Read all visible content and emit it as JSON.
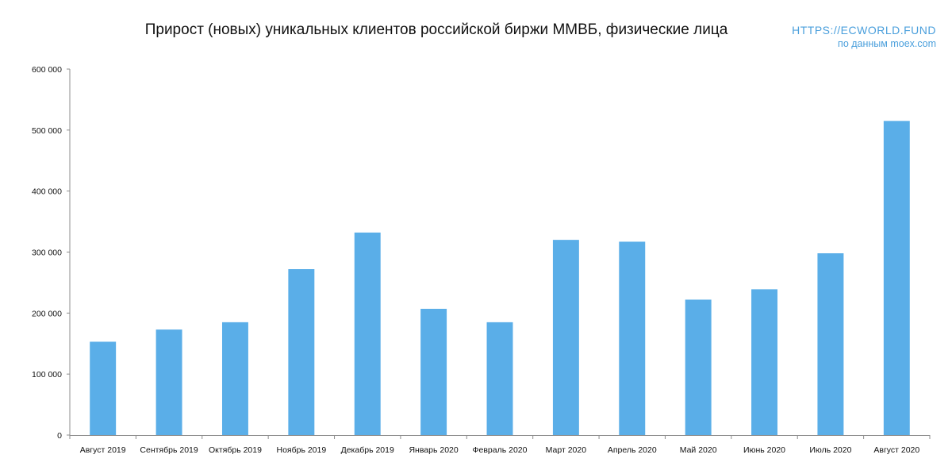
{
  "header": {
    "title": "Прирост (новых) уникальных клиентов российской биржи ММВБ, физические лица",
    "brand_url": "HTTPS://ECWORLD.FUND",
    "source": "по данным moex.com"
  },
  "colors": {
    "bar": "#5aaee8",
    "brand": "#4a9fdc",
    "axis": "#8c8c8c"
  },
  "chart_data": {
    "type": "bar",
    "title": "Прирост (новых) уникальных клиентов российской биржи ММВБ, физические лица",
    "categories": [
      "Август 2019",
      "Сентябрь 2019",
      "Октябрь 2019",
      "Ноябрь 2019",
      "Декабрь 2019",
      "Январь 2020",
      "Февраль 2020",
      "Март 2020",
      "Апрель 2020",
      "Май 2020",
      "Июнь 2020",
      "Июль 2020",
      "Август 2020"
    ],
    "values": [
      153000,
      173000,
      185000,
      272000,
      332000,
      207000,
      185000,
      320000,
      317000,
      222000,
      239000,
      298000,
      515000
    ],
    "ylim": [
      0,
      600000
    ],
    "yticks": [
      0,
      100000,
      200000,
      300000,
      400000,
      500000,
      600000
    ],
    "ytick_labels": [
      "0",
      "100 000",
      "200 000",
      "300 000",
      "400 000",
      "500 000",
      "600 000"
    ],
    "xlabel": "",
    "ylabel": "",
    "grid": false,
    "legend": "none"
  }
}
